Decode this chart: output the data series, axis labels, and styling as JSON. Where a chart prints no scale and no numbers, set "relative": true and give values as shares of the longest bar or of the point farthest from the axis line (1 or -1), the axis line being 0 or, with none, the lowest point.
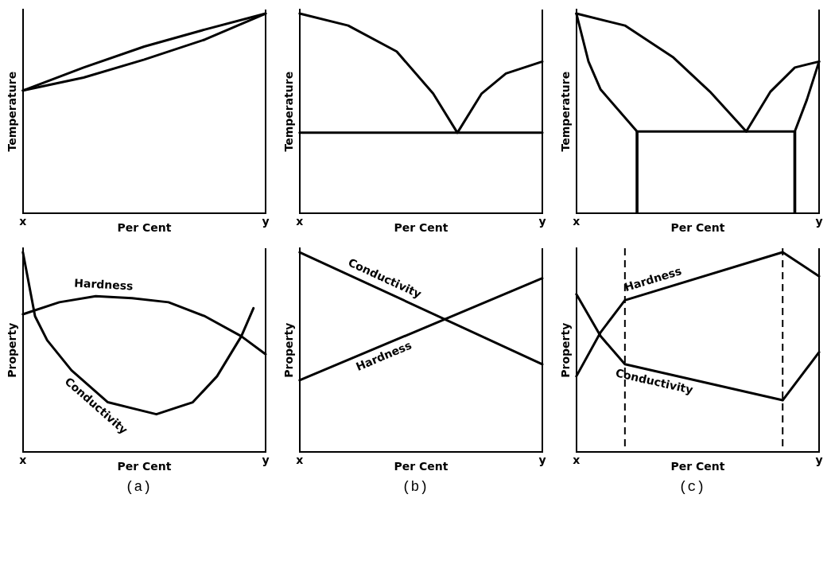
{
  "chart_data": [
    {
      "type": "line",
      "relative": true,
      "xlabel": "Per Cent",
      "ylabel": "Temperature",
      "legend": false,
      "grid": false,
      "marker": "none",
      "line_style": "solid",
      "categories": [
        "x",
        null,
        null,
        null,
        null,
        null,
        null,
        null,
        null,
        null,
        null,
        null,
        null,
        null,
        null,
        null,
        null,
        null,
        null,
        null,
        "y"
      ],
      "series": [
        {
          "color": "#000000",
          "values": [
            0.615,
            null,
            null,
            null,
            null,
            0.73,
            null,
            null,
            null,
            null,
            0.835,
            null,
            null,
            null,
            null,
            0.92,
            null,
            null,
            null,
            null,
            1
          ]
        },
        {
          "color": "#000000",
          "values": [
            0.615,
            null,
            null,
            null,
            null,
            0.68,
            null,
            null,
            null,
            null,
            0.77,
            null,
            null,
            null,
            null,
            0.87,
            null,
            null,
            null,
            null,
            1
          ]
        }
      ]
    },
    {
      "type": "line",
      "relative": true,
      "xlabel": "Per Cent",
      "ylabel": "Temperature",
      "legend": false,
      "grid": false,
      "marker": "none",
      "line_style": "solid",
      "categories": [
        "x",
        null,
        null,
        null,
        null,
        null,
        null,
        null,
        null,
        null,
        null,
        null,
        null,
        null,
        null,
        null,
        null,
        null,
        null,
        null,
        "y"
      ],
      "series": [
        {
          "color": "#000000",
          "values": [
            1,
            null,
            null,
            null,
            0.94,
            null,
            null,
            null,
            0.81,
            null,
            null,
            0.6,
            null,
            0.404,
            null,
            0.6,
            null,
            0.7,
            null,
            null,
            0.76
          ]
        },
        {
          "color": "#000000",
          "values": [
            0.404,
            null,
            null,
            null,
            null,
            null,
            null,
            null,
            null,
            null,
            null,
            null,
            null,
            null,
            null,
            null,
            null,
            null,
            null,
            null,
            0.404
          ]
        }
      ]
    },
    {
      "type": "line",
      "relative": true,
      "xlabel": "Per Cent",
      "ylabel": "Temperature",
      "legend": false,
      "grid": false,
      "marker": "none",
      "line_style": "solid",
      "categories": [
        "x",
        null,
        null,
        null,
        null,
        null,
        null,
        null,
        null,
        null,
        null,
        null,
        null,
        null,
        null,
        null,
        null,
        null,
        null,
        null,
        "y"
      ],
      "series": [
        {
          "color": "#000000",
          "values": [
            1,
            null,
            null,
            null,
            0.94,
            null,
            null,
            null,
            0.78,
            null,
            null,
            0.61,
            null,
            null,
            0.41,
            null,
            0.61,
            null,
            0.73,
            null,
            0.76
          ]
        },
        {
          "color": "#000000",
          "values": [
            1,
            0.76,
            0.62,
            null,
            null,
            0.41,
            null,
            null,
            null,
            null,
            null,
            null,
            null,
            null,
            null,
            null,
            null,
            null,
            0.41,
            0.57,
            0.76
          ]
        },
        {
          "type": "bar",
          "color": "#000000",
          "values": [
            null,
            null,
            null,
            null,
            null,
            0.41,
            null,
            null,
            null,
            null,
            null,
            null,
            null,
            null,
            null,
            null,
            null,
            null,
            0.41,
            null,
            null
          ]
        }
      ]
    },
    {
      "type": "line",
      "relative": true,
      "xlabel": "Per Cent",
      "ylabel": "Property",
      "legend": false,
      "grid": false,
      "marker": "none",
      "line_style": "solid",
      "annotations": [
        "(a)"
      ],
      "categories": [
        "x",
        null,
        null,
        null,
        null,
        null,
        null,
        null,
        null,
        null,
        null,
        null,
        null,
        null,
        null,
        null,
        null,
        null,
        null,
        null,
        "y"
      ],
      "series": [
        {
          "name": "Hardness",
          "color": "#000000",
          "values": [
            0.69,
            null,
            null,
            0.75,
            null,
            null,
            0.78,
            null,
            null,
            0.77,
            null,
            null,
            0.75,
            null,
            null,
            0.68,
            null,
            null,
            0.58,
            null,
            0.49
          ]
        },
        {
          "name": "Conductivity",
          "color": "#000000",
          "values": [
            1,
            0.68,
            0.56,
            null,
            0.41,
            null,
            null,
            0.25,
            null,
            null,
            null,
            0.19,
            null,
            null,
            0.25,
            null,
            0.38,
            null,
            0.58,
            0.72,
            null
          ]
        }
      ]
    },
    {
      "type": "line",
      "relative": true,
      "xlabel": "Per Cent",
      "ylabel": "Property",
      "legend": false,
      "grid": false,
      "marker": "none",
      "line_style": "solid",
      "annotations": [
        "(b)"
      ],
      "categories": [
        "x",
        null,
        null,
        null,
        null,
        null,
        null,
        null,
        null,
        null,
        null,
        null,
        null,
        null,
        null,
        null,
        null,
        null,
        null,
        null,
        "y"
      ],
      "series": [
        {
          "name": "Conductivity",
          "color": "#000000",
          "values": [
            1,
            null,
            null,
            null,
            null,
            null,
            null,
            null,
            null,
            null,
            null,
            null,
            null,
            null,
            null,
            null,
            null,
            null,
            null,
            null,
            0.44
          ]
        },
        {
          "name": "Hardness",
          "color": "#000000",
          "values": [
            0.36,
            null,
            null,
            null,
            null,
            null,
            null,
            null,
            null,
            null,
            null,
            null,
            null,
            null,
            null,
            null,
            null,
            null,
            null,
            null,
            0.87
          ]
        }
      ]
    },
    {
      "type": "line",
      "relative": true,
      "xlabel": "Per Cent",
      "ylabel": "Property",
      "legend": false,
      "marker": "none",
      "line_style": "solid",
      "annotations": [
        "(c)"
      ],
      "categories": [
        "x",
        null,
        null,
        null,
        null,
        null,
        null,
        null,
        null,
        null,
        null,
        null,
        null,
        null,
        null,
        null,
        null,
        null,
        null,
        null,
        "y"
      ],
      "series": [
        {
          "name": "Hardness",
          "color": "#000000",
          "values": [
            0.38,
            null,
            0.6,
            null,
            0.76,
            null,
            null,
            null,
            null,
            null,
            null,
            null,
            null,
            null,
            null,
            null,
            null,
            1,
            null,
            null,
            0.88
          ]
        },
        {
          "name": "Conductivity",
          "color": "#000000",
          "values": [
            0.79,
            null,
            0.58,
            null,
            0.44,
            null,
            null,
            null,
            null,
            null,
            null,
            null,
            null,
            null,
            null,
            null,
            null,
            0.26,
            null,
            null,
            0.5
          ]
        }
      ]
    }
  ]
}
